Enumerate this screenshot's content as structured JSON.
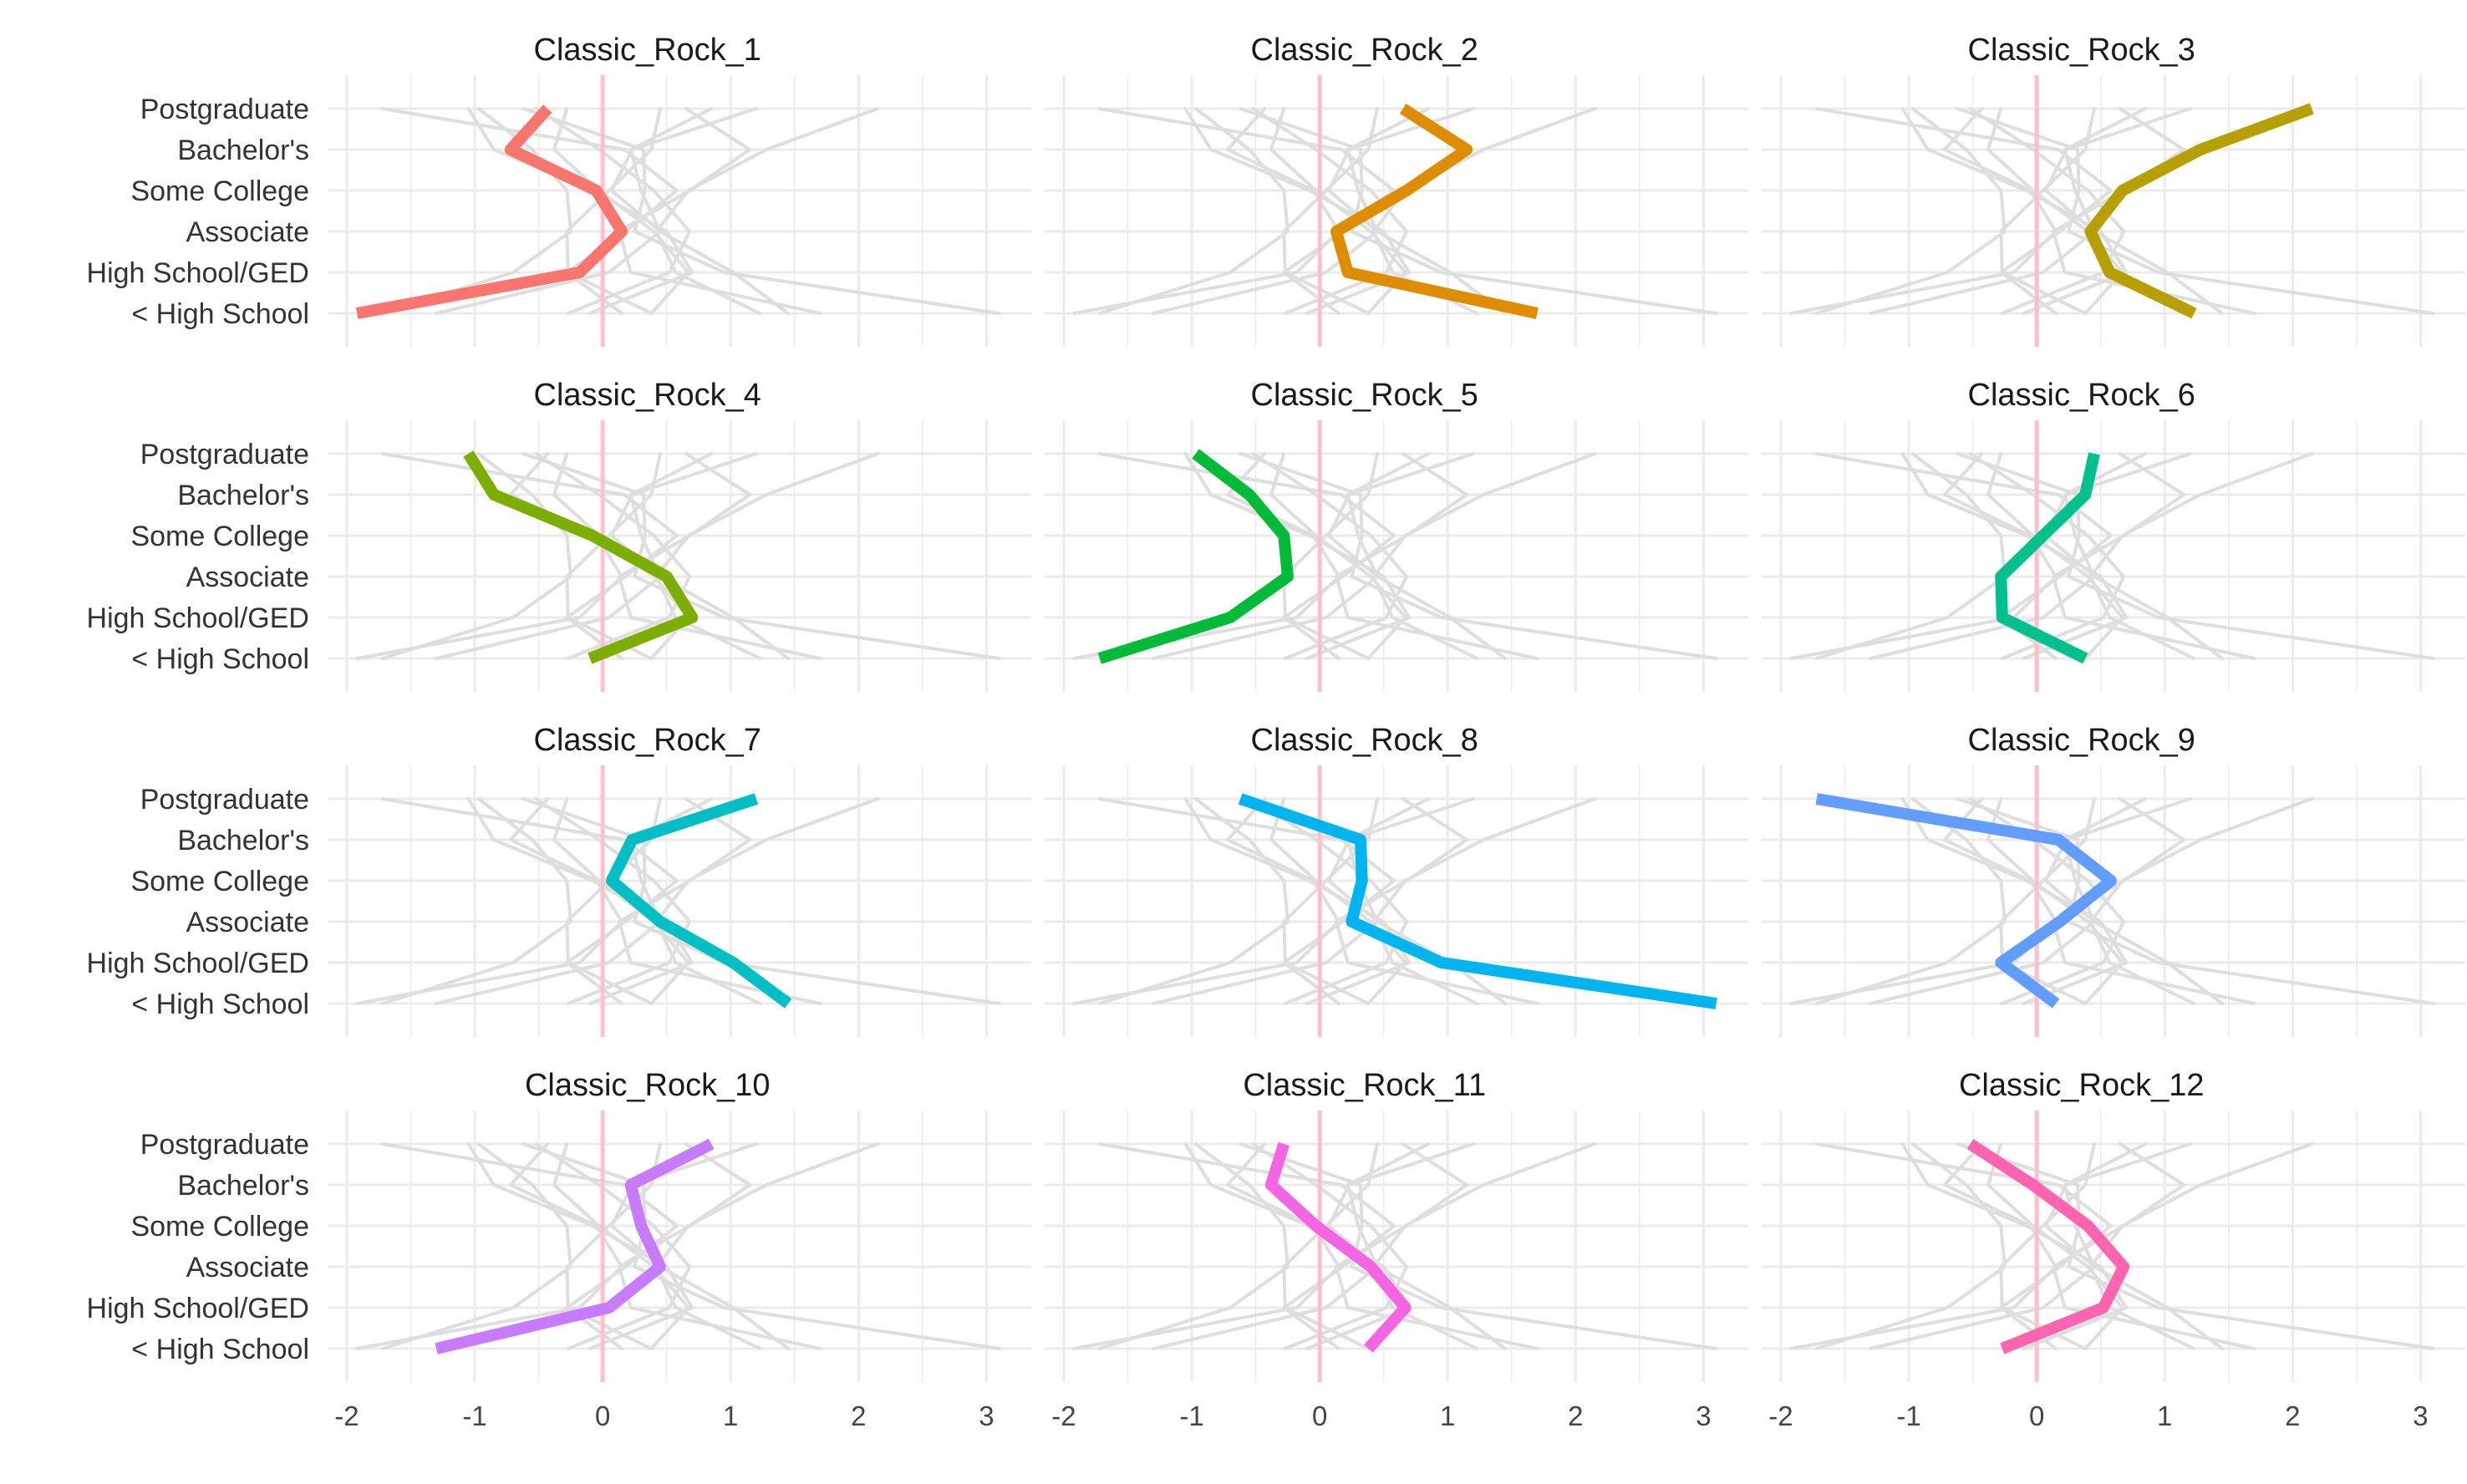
{
  "chart_data": {
    "type": "line",
    "layout": {
      "rows": 4,
      "cols": 3
    },
    "categories": [
      "< High School",
      "High School/GED",
      "Associate",
      "Some College",
      "Bachelor's",
      "Postgraduate"
    ],
    "xlim": [
      -2.15,
      3.35
    ],
    "x_ticks": [
      -2,
      -1,
      0,
      1,
      2,
      3
    ],
    "x_tick_labels": [
      "-2",
      "-1",
      "0",
      "1",
      "2",
      "3"
    ],
    "reference_line": {
      "x": 0,
      "color": "#FFC0CB"
    },
    "grid": true,
    "legend": "none",
    "background_series_color": "#DEDEDE",
    "facets": [
      {
        "title": "Classic_Rock_1",
        "color": "#F8766D",
        "values": [
          -1.92,
          -0.18,
          0.15,
          -0.05,
          -0.72,
          -0.43
        ]
      },
      {
        "title": "Classic_Rock_2",
        "color": "#DE8C00",
        "values": [
          1.7,
          0.22,
          0.13,
          0.68,
          1.15,
          0.65
        ]
      },
      {
        "title": "Classic_Rock_3",
        "color": "#B79F00",
        "values": [
          1.23,
          0.57,
          0.42,
          0.67,
          1.28,
          2.15
        ]
      },
      {
        "title": "Classic_Rock_4",
        "color": "#7CAE00",
        "values": [
          -0.1,
          0.7,
          0.5,
          -0.08,
          -0.85,
          -1.05
        ]
      },
      {
        "title": "Classic_Rock_5",
        "color": "#00BA38",
        "values": [
          -1.72,
          -0.7,
          -0.25,
          -0.28,
          -0.55,
          -0.97
        ]
      },
      {
        "title": "Classic_Rock_6",
        "color": "#00C08B",
        "values": [
          0.38,
          -0.27,
          -0.28,
          0.05,
          0.38,
          0.45
        ]
      },
      {
        "title": "Classic_Rock_7",
        "color": "#00BFC4",
        "values": [
          1.45,
          1.02,
          0.45,
          0.07,
          0.23,
          1.2
        ]
      },
      {
        "title": "Classic_Rock_8",
        "color": "#00B4F0",
        "values": [
          3.1,
          0.95,
          0.25,
          0.33,
          0.32,
          -0.62
        ]
      },
      {
        "title": "Classic_Rock_9",
        "color": "#619CFF",
        "values": [
          0.15,
          -0.28,
          0.18,
          0.58,
          0.17,
          -1.72
        ]
      },
      {
        "title": "Classic_Rock_10",
        "color": "#C77CFF",
        "values": [
          -1.3,
          0.05,
          0.45,
          0.3,
          0.22,
          0.85
        ]
      },
      {
        "title": "Classic_Rock_11",
        "color": "#F564E3",
        "values": [
          0.38,
          0.67,
          0.4,
          -0.03,
          -0.38,
          -0.28
        ]
      },
      {
        "title": "Classic_Rock_12",
        "color": "#FF64B0",
        "values": [
          -0.27,
          0.52,
          0.68,
          0.4,
          -0.03,
          -0.52
        ]
      }
    ]
  }
}
